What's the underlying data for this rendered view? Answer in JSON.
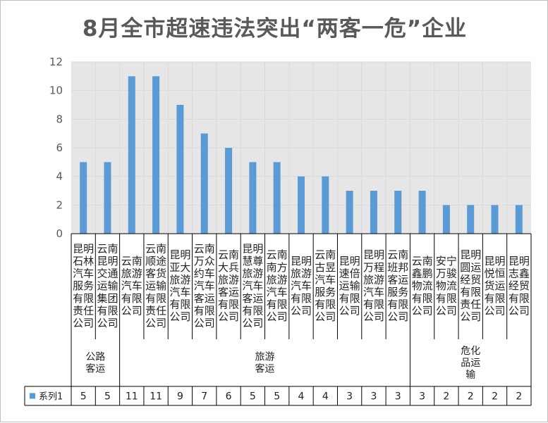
{
  "title": "8月全市超速违法突出“两客一危”企业",
  "chart_data": {
    "type": "bar",
    "title": "8月全市超速违法突出“两客一危”企业",
    "ylim": [
      0,
      12
    ],
    "yticks": [
      0,
      2,
      4,
      6,
      8,
      10,
      12
    ],
    "grid": true,
    "categories": [
      "昆明石林汽车服务有限责任公司",
      "云南昆明交通运输集团有限公司",
      "云南旅游汽车有限公司",
      "云南顺途客货运输有限责任公司",
      "昆明亚大旅游汽车有限公司",
      "云南万众约车汽车客运有限公司",
      "云南大兵旅游客运有限公司",
      "昆明慧尊旅游汽车客运有限公司",
      "云南南方旅游汽车有限公司",
      "昆明旅游汽车有限公司",
      "云南古昱汽车服务有限公司",
      "昆明速倍运输有限公司",
      "昆明万程旅游汽车有限公司",
      "云南班邦客运服务有限公司",
      "云南鑫鹏物流有限公司",
      "安宁万骏物流有限公司",
      "昆明圆运经贸有限责任公司",
      "昆明悦恒货运有限公司",
      "昆明志鑫经贸有限公司"
    ],
    "category_lines": [
      [
        "昆明",
        "石林",
        "汽车",
        "服务",
        "有限",
        "责任",
        "公司"
      ],
      [
        "云南",
        "昆明",
        "交通",
        "运输",
        "集团",
        "有限",
        "公司"
      ],
      [
        "云南",
        "旅游",
        "汽车",
        "有限",
        "公司"
      ],
      [
        "云南",
        "顺途",
        "客货",
        "运输",
        "有限",
        "责任",
        "公司"
      ],
      [
        "昆明",
        "亚大",
        "旅游",
        "汽车",
        "有限",
        "公司"
      ],
      [
        "云南",
        "万众",
        "约车",
        "汽车",
        "客运",
        "有限",
        "公司"
      ],
      [
        "云南",
        "大兵",
        "旅游",
        "客运",
        "有限",
        "公司"
      ],
      [
        "昆明",
        "慧尊",
        "旅游",
        "汽车",
        "客运",
        "有限",
        "公司"
      ],
      [
        "云南",
        "南方",
        "旅游",
        "汽车",
        "有限",
        "公司"
      ],
      [
        "昆明",
        "旅游",
        "汽车",
        "有限",
        "公司"
      ],
      [
        "云南",
        "古昱",
        "汽车",
        "服务",
        "有限",
        "公司"
      ],
      [
        "昆明",
        "速倍",
        "运输",
        "有限",
        "公司"
      ],
      [
        "昆明",
        "万程",
        "旅游",
        "汽车",
        "有限",
        "公司"
      ],
      [
        "云南",
        "班邦",
        "客运",
        "服务",
        "有限",
        "公司"
      ],
      [
        "云南",
        "鑫鹏",
        "物流",
        "有限",
        "公司"
      ],
      [
        "安宁",
        "万骏",
        "物流",
        "有限",
        "公司"
      ],
      [
        "昆明",
        "圆运",
        "经贸",
        "有限",
        "责任",
        "公司"
      ],
      [
        "昆明",
        "悦恒",
        "货运",
        "有限",
        "公司"
      ],
      [
        "昆明",
        "志鑫",
        "经贸",
        "有限",
        "公司"
      ]
    ],
    "groups": [
      {
        "name": "公路客运",
        "lines": [
          "公路",
          "客运"
        ],
        "start": 0,
        "end": 1
      },
      {
        "name": "旅游客运",
        "lines": [
          "旅游",
          "客运"
        ],
        "start": 2,
        "end": 13
      },
      {
        "name": "危化品运输",
        "lines": [
          "危化",
          "品运",
          "输"
        ],
        "start": 14,
        "end": 18
      }
    ],
    "series": [
      {
        "name": "系列1",
        "values": [
          5,
          5,
          11,
          11,
          9,
          7,
          6,
          5,
          5,
          4,
          4,
          3,
          3,
          3,
          3,
          2,
          2,
          2,
          2
        ]
      }
    ],
    "colors": {
      "bar": "#5b9bd5",
      "grid": "#d9d9d9",
      "plot_bg": "#e7e6e6",
      "axis": "#000000"
    },
    "legend_placement": "data-table"
  }
}
